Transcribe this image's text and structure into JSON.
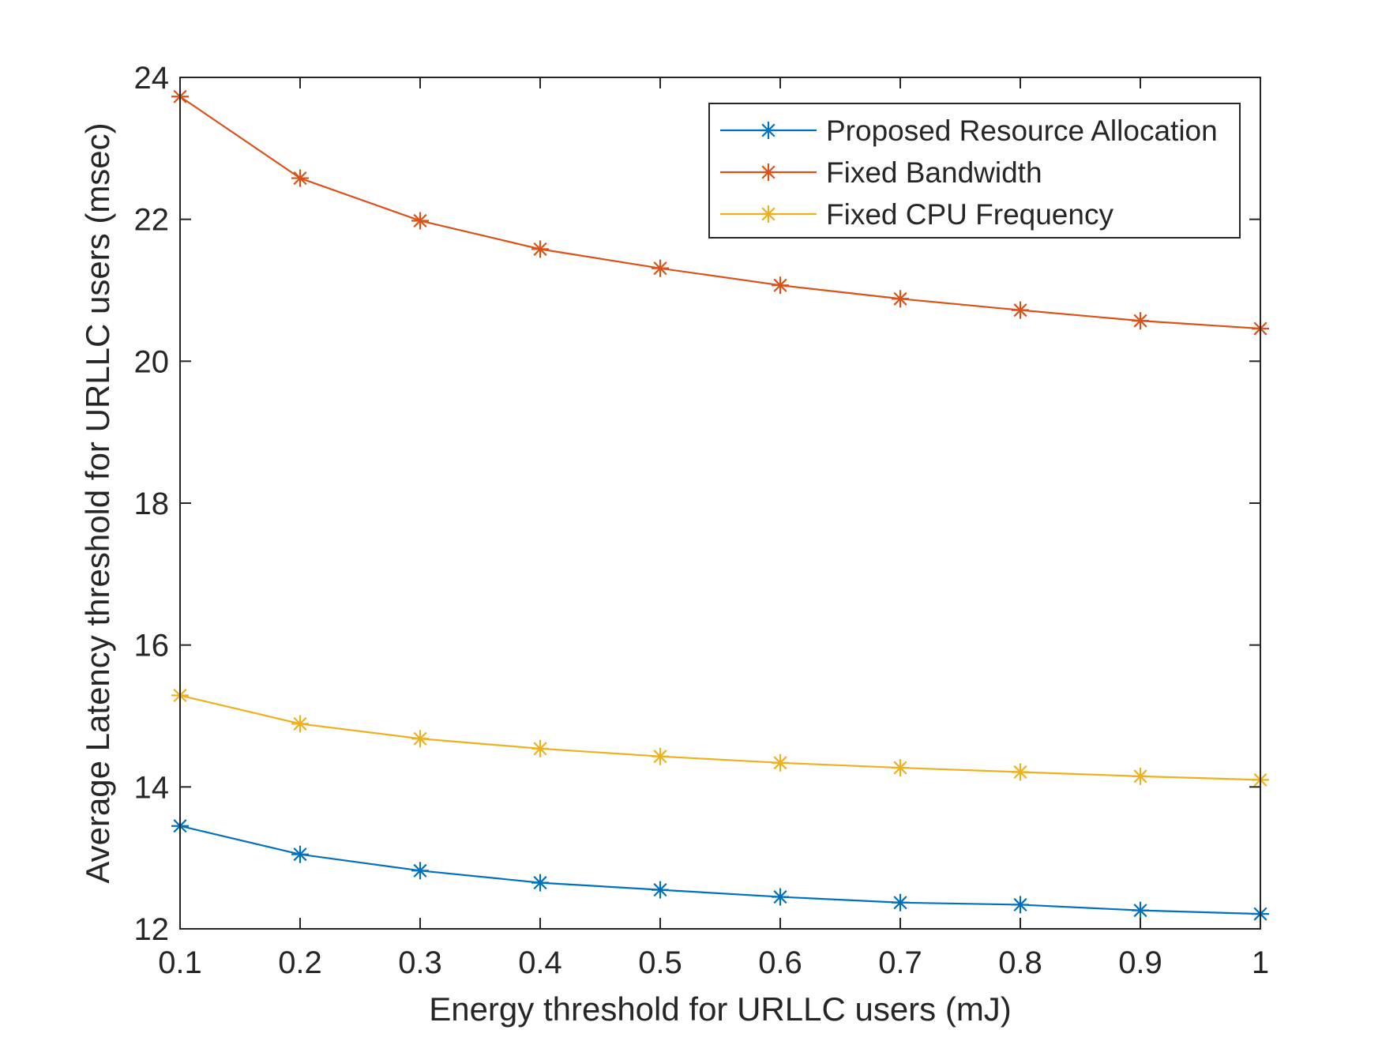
{
  "chart_data": {
    "type": "line",
    "title": "",
    "xlabel": "Energy threshold for URLLC users (mJ)",
    "ylabel": "Average Latency threshold for URLLC users (msec)",
    "xlim": [
      0.1,
      1
    ],
    "ylim": [
      12,
      24
    ],
    "xticks": [
      0.1,
      0.2,
      0.3,
      0.4,
      0.5,
      0.6,
      0.7,
      0.8,
      0.9,
      1
    ],
    "xtick_labels": [
      "0.1",
      "0.2",
      "0.3",
      "0.4",
      "0.5",
      "0.6",
      "0.7",
      "0.8",
      "0.9",
      "1"
    ],
    "yticks": [
      12,
      14,
      16,
      18,
      20,
      22,
      24
    ],
    "ytick_labels": [
      "12",
      "14",
      "16",
      "18",
      "20",
      "22",
      "24"
    ],
    "grid": false,
    "legend_position": "top-right",
    "marker": "asterisk",
    "x": [
      0.1,
      0.2,
      0.3,
      0.4,
      0.5,
      0.6,
      0.7,
      0.8,
      0.9,
      1.0
    ],
    "series": [
      {
        "name": "Proposed Resource Allocation",
        "color": "#0072BD",
        "values": [
          13.45,
          13.05,
          12.82,
          12.65,
          12.55,
          12.45,
          12.37,
          12.34,
          12.26,
          12.21
        ]
      },
      {
        "name": "Fixed Bandwidth",
        "color": "#D95319",
        "values": [
          23.73,
          22.58,
          21.98,
          21.58,
          21.31,
          21.07,
          20.88,
          20.72,
          20.57,
          20.46
        ]
      },
      {
        "name": "Fixed CPU Frequency",
        "color": "#EDB120",
        "values": [
          15.29,
          14.89,
          14.68,
          14.54,
          14.43,
          14.34,
          14.27,
          14.21,
          14.15,
          14.1
        ]
      }
    ]
  }
}
